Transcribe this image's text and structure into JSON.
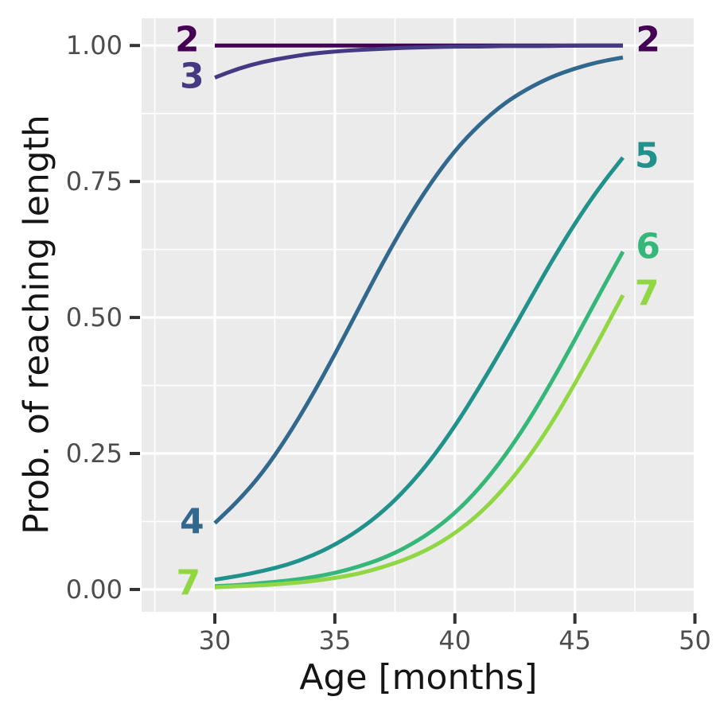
{
  "chart_data": {
    "type": "line",
    "title": "",
    "xlabel": "Age [months]",
    "ylabel": "Prob. of reaching length",
    "xlim": [
      26.95,
      50.05
    ],
    "ylim": [
      -0.041,
      1.05
    ],
    "grid": "on",
    "legend": "direct-labels-at-line-ends",
    "panel_bg": "#ebebeb",
    "grid_color": "#ffffff",
    "tick_mark_color": "#333333",
    "tick_label_color": "#4d4d4d",
    "axis_title_color": "#151515",
    "x_ticks": [
      {
        "label": "30",
        "value": 30
      },
      {
        "label": "35",
        "value": 35
      },
      {
        "label": "40",
        "value": 40
      },
      {
        "label": "45",
        "value": 45
      },
      {
        "label": "50",
        "value": 50
      }
    ],
    "y_ticks": [
      {
        "label": "0.00",
        "value": 0.0
      },
      {
        "label": "0.25",
        "value": 0.25
      },
      {
        "label": "0.50",
        "value": 0.5
      },
      {
        "label": "0.75",
        "value": 0.75
      },
      {
        "label": "1.00",
        "value": 1.0
      }
    ],
    "x_minor": [
      27.5,
      32.5,
      37.5,
      42.5,
      47.5
    ],
    "y_minor": [
      0.125,
      0.375,
      0.625,
      0.875
    ],
    "ages": [
      30,
      31,
      32,
      33,
      34,
      35,
      36,
      37,
      38,
      39,
      40,
      41,
      42,
      43,
      44,
      45,
      46,
      47
    ],
    "series": [
      {
        "name": "2",
        "color": "#440154",
        "values": [
          1.0,
          1.0,
          1.0,
          1.0,
          1.0,
          1.0,
          1.0,
          1.0,
          1.0,
          1.0,
          1.0,
          1.0,
          1.0,
          1.0,
          1.0,
          1.0,
          1.0,
          1.0
        ]
      },
      {
        "name": "3",
        "color": "#443983",
        "values": [
          0.941,
          0.958,
          0.97,
          0.978,
          0.985,
          0.989,
          0.992,
          0.994,
          0.996,
          0.997,
          0.998,
          0.998,
          0.999,
          0.999,
          0.999,
          1.0,
          1.0,
          1.0
        ]
      },
      {
        "name": "4",
        "color": "#31688e",
        "values": [
          0.122,
          0.164,
          0.215,
          0.279,
          0.352,
          0.432,
          0.517,
          0.601,
          0.679,
          0.748,
          0.807,
          0.854,
          0.892,
          0.92,
          0.942,
          0.958,
          0.97,
          0.978
        ]
      },
      {
        "name": "5",
        "color": "#21918c",
        "values": [
          0.018,
          0.025,
          0.034,
          0.045,
          0.061,
          0.082,
          0.109,
          0.143,
          0.186,
          0.238,
          0.3,
          0.37,
          0.445,
          0.523,
          0.601,
          0.673,
          0.738,
          0.794
        ]
      },
      {
        "name": "6",
        "color": "#35b779",
        "values": [
          0.006,
          0.008,
          0.012,
          0.016,
          0.022,
          0.03,
          0.042,
          0.057,
          0.078,
          0.105,
          0.14,
          0.185,
          0.24,
          0.305,
          0.379,
          0.459,
          0.541,
          0.621
        ]
      },
      {
        "name": "7",
        "color": "#90d743",
        "values": [
          0.004,
          0.006,
          0.008,
          0.011,
          0.015,
          0.021,
          0.029,
          0.041,
          0.056,
          0.076,
          0.103,
          0.138,
          0.183,
          0.238,
          0.303,
          0.378,
          0.458,
          0.541
        ]
      }
    ],
    "line_labels": [
      {
        "text": "2",
        "side": "left",
        "age": 28.85,
        "prob": 1.007,
        "color": "#440154"
      },
      {
        "text": "3",
        "side": "left",
        "age": 29.05,
        "prob": 0.94,
        "color": "#443983"
      },
      {
        "text": "4",
        "side": "left",
        "age": 29.05,
        "prob": 0.121,
        "color": "#31688e"
      },
      {
        "text": "7",
        "side": "left",
        "age": 28.9,
        "prob": 0.009,
        "color": "#90d743"
      },
      {
        "text": "2",
        "side": "right",
        "age": 48.05,
        "prob": 1.007,
        "color": "#440154"
      },
      {
        "text": "5",
        "side": "right",
        "age": 48.0,
        "prob": 0.794,
        "color": "#21918c"
      },
      {
        "text": "6",
        "side": "right",
        "age": 48.05,
        "prob": 0.628,
        "color": "#35b779"
      },
      {
        "text": "7",
        "side": "right",
        "age": 48.0,
        "prob": 0.541,
        "color": "#90d743"
      }
    ]
  }
}
